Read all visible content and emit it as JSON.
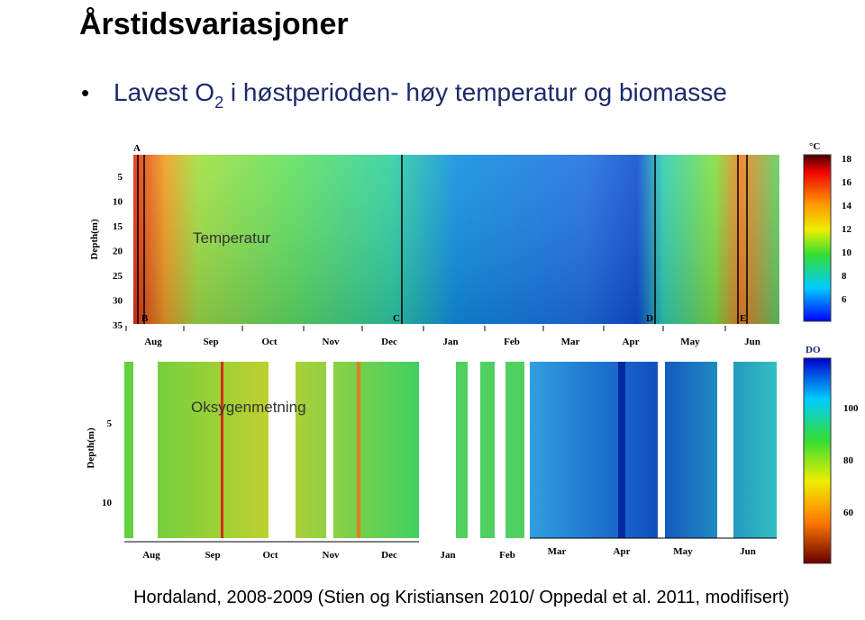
{
  "header": {
    "title": "Årstidsvariasjoner"
  },
  "bullet": {
    "text_before": "Lavest O",
    "subscript": "2",
    "text_after": " i høstperioden- høy temperatur og biomasse"
  },
  "temperature_panel": {
    "label": "Temperatur",
    "y_axis_label": "Depth(m)",
    "yticks": [
      5,
      10,
      15,
      20,
      25,
      30,
      35
    ],
    "months": [
      "Aug",
      "Sep",
      "Oct",
      "Nov",
      "Dec",
      "Jan",
      "Feb",
      "Mar",
      "Apr",
      "May",
      "Jun"
    ],
    "markers": [
      "A",
      "B",
      "C",
      "D",
      "E"
    ],
    "colorbar": {
      "unit": "°C",
      "ticks": [
        18,
        16,
        14,
        12,
        10,
        8,
        6
      ]
    }
  },
  "oxygen_panel": {
    "label": "Oksygenmetning",
    "y_axis_label": "Depth(m)",
    "yticks": [
      5,
      10
    ],
    "months": [
      "Aug",
      "Sep",
      "Oct",
      "Nov",
      "Dec",
      "Jan",
      "Feb",
      "Mar",
      "Apr",
      "May",
      "Jun"
    ],
    "colorbar": {
      "unit": "DO",
      "ticks": [
        100,
        80,
        60
      ]
    }
  },
  "footer": {
    "caption": "Hordaland, 2008-2009 (Stien og Kristiansen 2010/ Oppedal et al. 2011, modifisert)"
  }
}
